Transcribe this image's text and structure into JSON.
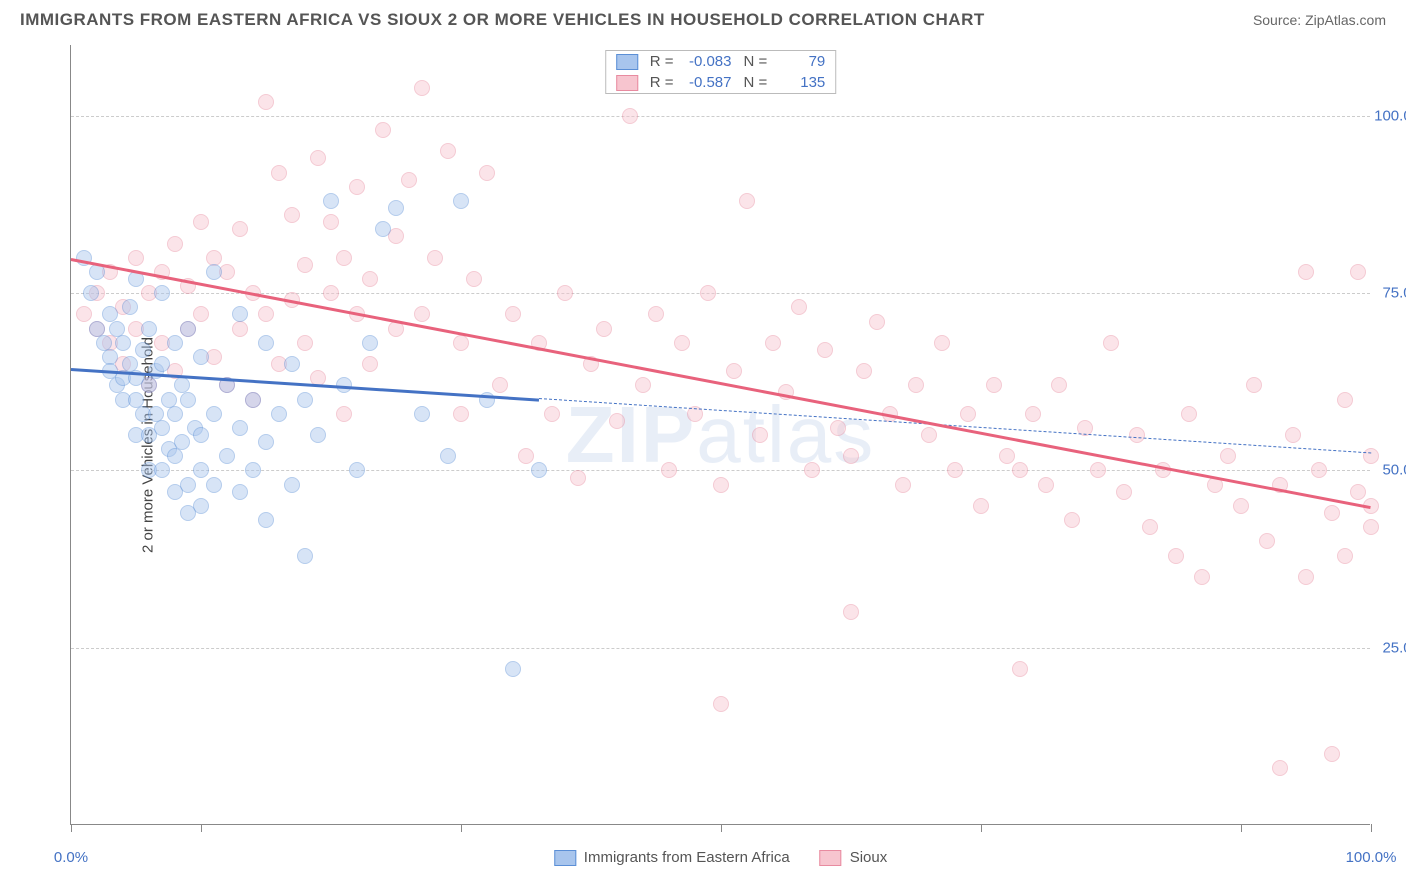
{
  "title": "IMMIGRANTS FROM EASTERN AFRICA VS SIOUX 2 OR MORE VEHICLES IN HOUSEHOLD CORRELATION CHART",
  "source": "Source: ZipAtlas.com",
  "watermark": "ZIPatlas",
  "chart": {
    "type": "scatter",
    "background_color": "#ffffff",
    "grid_color": "#cccccc",
    "axis_color": "#888888",
    "y_title": "2 or more Vehicles in Household",
    "y_title_fontsize": 15,
    "xlim": [
      0,
      100
    ],
    "ylim": [
      0,
      110
    ],
    "x_ticks": [
      0,
      10,
      30,
      50,
      70,
      90,
      100
    ],
    "x_tick_labels": {
      "0": "0.0%",
      "100": "100.0%"
    },
    "y_ticks": [
      25,
      50,
      75,
      100
    ],
    "y_tick_labels": {
      "25": "25.0%",
      "50": "50.0%",
      "75": "75.0%",
      "100": "100.0%"
    },
    "label_color": "#4472c4",
    "label_fontsize": 15,
    "marker_radius": 8,
    "marker_opacity": 0.45,
    "series": [
      {
        "name": "Immigrants from Eastern Africa",
        "color_fill": "#a8c5ed",
        "color_stroke": "#5b8fd6",
        "R": "-0.083",
        "N": "79",
        "trend": {
          "x1": 0,
          "y1": 64.5,
          "x2": 100,
          "y2": 52.5,
          "solid_until": 36,
          "color": "#4472c4"
        },
        "points": [
          [
            1,
            80
          ],
          [
            1.5,
            75
          ],
          [
            2,
            78
          ],
          [
            2,
            70
          ],
          [
            2.5,
            68
          ],
          [
            3,
            72
          ],
          [
            3,
            66
          ],
          [
            3,
            64
          ],
          [
            3.5,
            70
          ],
          [
            3.5,
            62
          ],
          [
            4,
            68
          ],
          [
            4,
            63
          ],
          [
            4,
            60
          ],
          [
            4.5,
            73
          ],
          [
            4.5,
            65
          ],
          [
            5,
            77
          ],
          [
            5,
            63
          ],
          [
            5,
            60
          ],
          [
            5,
            55
          ],
          [
            5.5,
            67
          ],
          [
            5.5,
            58
          ],
          [
            6,
            70
          ],
          [
            6,
            62
          ],
          [
            6,
            55
          ],
          [
            6,
            50
          ],
          [
            6.5,
            64
          ],
          [
            6.5,
            58
          ],
          [
            7,
            75
          ],
          [
            7,
            65
          ],
          [
            7,
            56
          ],
          [
            7,
            50
          ],
          [
            7.5,
            60
          ],
          [
            7.5,
            53
          ],
          [
            8,
            68
          ],
          [
            8,
            58
          ],
          [
            8,
            52
          ],
          [
            8,
            47
          ],
          [
            8.5,
            62
          ],
          [
            8.5,
            54
          ],
          [
            9,
            70
          ],
          [
            9,
            60
          ],
          [
            9,
            48
          ],
          [
            9,
            44
          ],
          [
            9.5,
            56
          ],
          [
            10,
            66
          ],
          [
            10,
            55
          ],
          [
            10,
            50
          ],
          [
            10,
            45
          ],
          [
            11,
            78
          ],
          [
            11,
            58
          ],
          [
            11,
            48
          ],
          [
            12,
            62
          ],
          [
            12,
            52
          ],
          [
            13,
            72
          ],
          [
            13,
            56
          ],
          [
            13,
            47
          ],
          [
            14,
            60
          ],
          [
            14,
            50
          ],
          [
            15,
            68
          ],
          [
            15,
            54
          ],
          [
            15,
            43
          ],
          [
            16,
            58
          ],
          [
            17,
            65
          ],
          [
            17,
            48
          ],
          [
            18,
            60
          ],
          [
            18,
            38
          ],
          [
            19,
            55
          ],
          [
            20,
            88
          ],
          [
            21,
            62
          ],
          [
            22,
            50
          ],
          [
            23,
            68
          ],
          [
            24,
            84
          ],
          [
            25,
            87
          ],
          [
            27,
            58
          ],
          [
            29,
            52
          ],
          [
            30,
            88
          ],
          [
            32,
            60
          ],
          [
            34,
            22
          ],
          [
            36,
            50
          ]
        ]
      },
      {
        "name": "Sioux",
        "color_fill": "#f7c5cf",
        "color_stroke": "#e88ba0",
        "R": "-0.587",
        "N": "135",
        "trend": {
          "x1": 0,
          "y1": 80,
          "x2": 100,
          "y2": 45,
          "solid_until": 100,
          "color": "#e8627c"
        },
        "points": [
          [
            1,
            72
          ],
          [
            2,
            75
          ],
          [
            2,
            70
          ],
          [
            3,
            78
          ],
          [
            3,
            68
          ],
          [
            4,
            73
          ],
          [
            4,
            65
          ],
          [
            5,
            80
          ],
          [
            5,
            70
          ],
          [
            6,
            75
          ],
          [
            6,
            62
          ],
          [
            7,
            78
          ],
          [
            7,
            68
          ],
          [
            8,
            82
          ],
          [
            8,
            64
          ],
          [
            9,
            76
          ],
          [
            9,
            70
          ],
          [
            10,
            85
          ],
          [
            10,
            72
          ],
          [
            11,
            80
          ],
          [
            11,
            66
          ],
          [
            12,
            78
          ],
          [
            12,
            62
          ],
          [
            13,
            84
          ],
          [
            13,
            70
          ],
          [
            14,
            75
          ],
          [
            14,
            60
          ],
          [
            15,
            102
          ],
          [
            15,
            72
          ],
          [
            16,
            92
          ],
          [
            16,
            65
          ],
          [
            17,
            86
          ],
          [
            17,
            74
          ],
          [
            18,
            79
          ],
          [
            18,
            68
          ],
          [
            19,
            94
          ],
          [
            19,
            63
          ],
          [
            20,
            85
          ],
          [
            20,
            75
          ],
          [
            21,
            80
          ],
          [
            21,
            58
          ],
          [
            22,
            72
          ],
          [
            22,
            90
          ],
          [
            23,
            77
          ],
          [
            23,
            65
          ],
          [
            24,
            98
          ],
          [
            25,
            83
          ],
          [
            25,
            70
          ],
          [
            26,
            91
          ],
          [
            27,
            72
          ],
          [
            27,
            104
          ],
          [
            28,
            80
          ],
          [
            29,
            95
          ],
          [
            30,
            68
          ],
          [
            30,
            58
          ],
          [
            31,
            77
          ],
          [
            32,
            92
          ],
          [
            33,
            62
          ],
          [
            34,
            72
          ],
          [
            35,
            52
          ],
          [
            36,
            68
          ],
          [
            37,
            58
          ],
          [
            38,
            75
          ],
          [
            39,
            49
          ],
          [
            40,
            65
          ],
          [
            41,
            70
          ],
          [
            42,
            57
          ],
          [
            43,
            100
          ],
          [
            44,
            62
          ],
          [
            45,
            72
          ],
          [
            46,
            50
          ],
          [
            47,
            68
          ],
          [
            48,
            58
          ],
          [
            49,
            75
          ],
          [
            50,
            48
          ],
          [
            50,
            17
          ],
          [
            51,
            64
          ],
          [
            52,
            88
          ],
          [
            53,
            55
          ],
          [
            54,
            68
          ],
          [
            55,
            61
          ],
          [
            56,
            73
          ],
          [
            57,
            50
          ],
          [
            58,
            67
          ],
          [
            59,
            56
          ],
          [
            60,
            52
          ],
          [
            60,
            30
          ],
          [
            61,
            64
          ],
          [
            62,
            71
          ],
          [
            63,
            58
          ],
          [
            64,
            48
          ],
          [
            65,
            62
          ],
          [
            66,
            55
          ],
          [
            67,
            68
          ],
          [
            68,
            50
          ],
          [
            69,
            58
          ],
          [
            70,
            45
          ],
          [
            71,
            62
          ],
          [
            72,
            52
          ],
          [
            73,
            50
          ],
          [
            73,
            22
          ],
          [
            74,
            58
          ],
          [
            75,
            48
          ],
          [
            76,
            62
          ],
          [
            77,
            43
          ],
          [
            78,
            56
          ],
          [
            79,
            50
          ],
          [
            80,
            68
          ],
          [
            81,
            47
          ],
          [
            82,
            55
          ],
          [
            83,
            42
          ],
          [
            84,
            50
          ],
          [
            85,
            38
          ],
          [
            86,
            58
          ],
          [
            87,
            35
          ],
          [
            88,
            48
          ],
          [
            89,
            52
          ],
          [
            90,
            45
          ],
          [
            91,
            62
          ],
          [
            92,
            40
          ],
          [
            93,
            48
          ],
          [
            93,
            8
          ],
          [
            94,
            55
          ],
          [
            95,
            78
          ],
          [
            95,
            35
          ],
          [
            96,
            50
          ],
          [
            97,
            44
          ],
          [
            97,
            10
          ],
          [
            98,
            60
          ],
          [
            98,
            38
          ],
          [
            99,
            47
          ],
          [
            99,
            78
          ],
          [
            100,
            52
          ],
          [
            100,
            42
          ],
          [
            100,
            45
          ]
        ]
      }
    ]
  }
}
